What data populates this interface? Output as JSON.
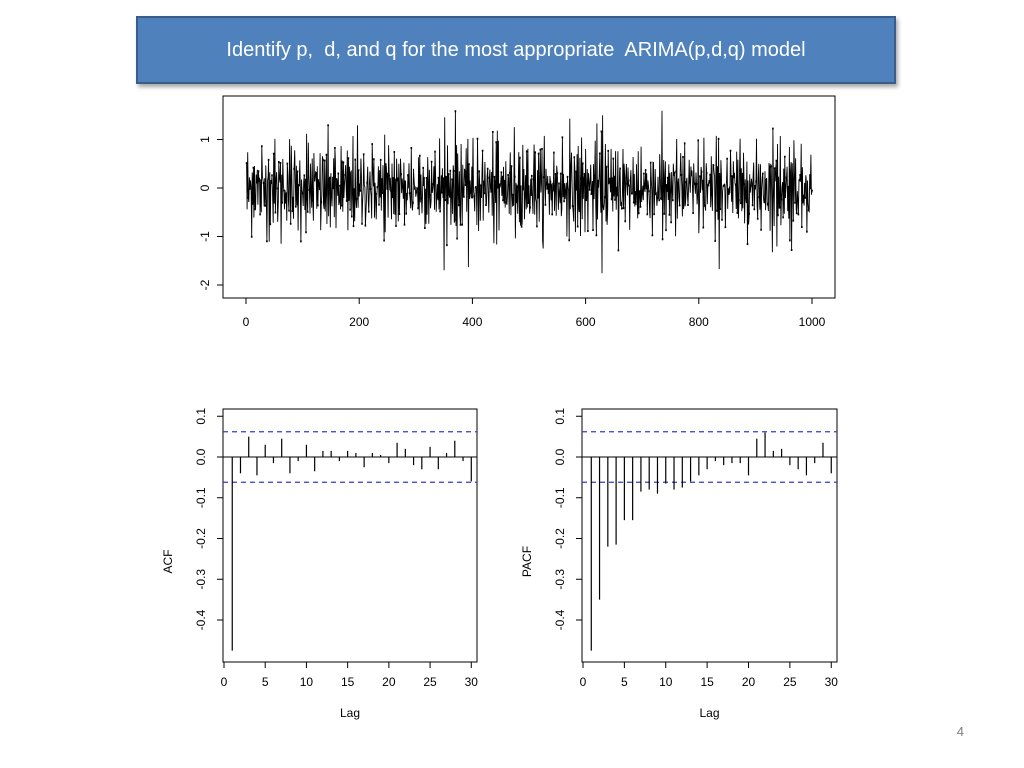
{
  "slide": {
    "title": "Identify p,  d, and q for the most appropriate  ARIMA(p,d,q) model",
    "page_number": "4",
    "title_bg": "#4f81bd"
  },
  "chart_data": [
    {
      "type": "line",
      "series": [
        {
          "n": 1000,
          "mean": 0,
          "sd": 0.5
        }
      ],
      "xlim": [
        0,
        1000
      ],
      "ylim": [
        -2.2,
        1.8
      ],
      "x_ticks": [
        0,
        200,
        400,
        600,
        800,
        1000
      ],
      "y_ticks": [
        -2,
        -1,
        0,
        1
      ],
      "xlabel": "",
      "ylabel": ""
    },
    {
      "type": "bar",
      "ylabel": "ACF",
      "xlabel": "Lag",
      "x_ticks": [
        0,
        5,
        10,
        15,
        20,
        25,
        30
      ],
      "y_ticks": [
        -0.4,
        -0.3,
        -0.2,
        -0.1,
        0.0,
        0.1
      ],
      "ylim": [
        -0.5,
        0.11
      ],
      "xlim": [
        0,
        31
      ],
      "confidence_band": [
        -0.062,
        0.062
      ],
      "lags": [
        1,
        2,
        3,
        4,
        5,
        6,
        7,
        8,
        9,
        10,
        11,
        12,
        13,
        14,
        15,
        16,
        17,
        18,
        19,
        20,
        21,
        22,
        23,
        24,
        25,
        26,
        27,
        28,
        29,
        30
      ],
      "values": [
        -0.475,
        -0.04,
        0.05,
        -0.045,
        0.03,
        -0.015,
        0.045,
        -0.04,
        -0.01,
        0.03,
        -0.035,
        0.015,
        0.015,
        -0.01,
        0.015,
        0.01,
        -0.025,
        0.01,
        0.005,
        -0.015,
        0.035,
        0.02,
        -0.02,
        -0.03,
        0.025,
        -0.03,
        0.01,
        0.04,
        -0.01,
        -0.06
      ]
    },
    {
      "type": "bar",
      "ylabel": "PACF",
      "xlabel": "Lag",
      "x_ticks": [
        0,
        5,
        10,
        15,
        20,
        25,
        30
      ],
      "y_ticks": [
        -0.4,
        -0.3,
        -0.2,
        -0.1,
        0.0,
        0.1
      ],
      "ylim": [
        -0.5,
        0.11
      ],
      "xlim": [
        0,
        31
      ],
      "confidence_band": [
        -0.062,
        0.062
      ],
      "lags": [
        1,
        2,
        3,
        4,
        5,
        6,
        7,
        8,
        9,
        10,
        11,
        12,
        13,
        14,
        15,
        16,
        17,
        18,
        19,
        20,
        21,
        22,
        23,
        24,
        25,
        26,
        27,
        28,
        29,
        30
      ],
      "values": [
        -0.475,
        -0.35,
        -0.22,
        -0.215,
        -0.155,
        -0.155,
        -0.085,
        -0.08,
        -0.09,
        -0.065,
        -0.08,
        -0.075,
        -0.06,
        -0.045,
        -0.03,
        -0.01,
        -0.02,
        -0.015,
        -0.015,
        -0.045,
        0.045,
        0.06,
        0.015,
        0.02,
        -0.02,
        -0.03,
        -0.045,
        -0.015,
        0.035,
        -0.04
      ]
    }
  ]
}
